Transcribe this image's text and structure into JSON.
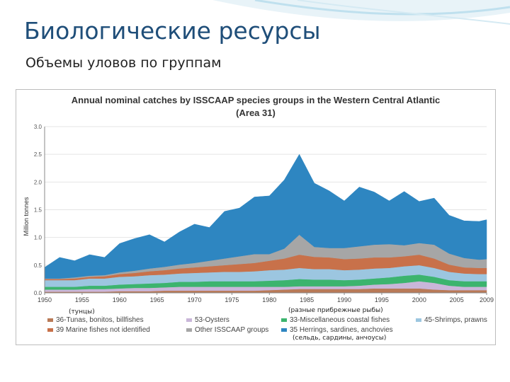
{
  "slide": {
    "title": "Биологические ресурсы",
    "subtitle": "Объемы уловов по группам"
  },
  "annotations": {
    "tunas_ru": "(тунцы)",
    "coastal_ru": "(разные прибрежные рыбы)",
    "herrings_ru": "(сельдь, сардины, анчоусы)"
  },
  "chart_data": {
    "type": "area",
    "stacked": true,
    "title": "Annual nominal catches by ISSCAAP species groups in the Western Central Atlantic",
    "subtitle": "(Area 31)",
    "ylabel": "Million tonnes",
    "xlabel": "",
    "ylim": [
      0,
      3.0
    ],
    "xlim": [
      1950,
      2009
    ],
    "y_ticks": [
      "0.0",
      "0.5",
      "1.0",
      "1.5",
      "2.0",
      "2.5",
      "3.0"
    ],
    "x_ticks": [
      "1950",
      "1955",
      "1960",
      "1965",
      "1970",
      "1975",
      "1980",
      "1985",
      "1990",
      "1995",
      "2000",
      "2005",
      "2009"
    ],
    "x": [
      1950,
      1952,
      1954,
      1956,
      1958,
      1960,
      1962,
      1964,
      1966,
      1968,
      1970,
      1972,
      1974,
      1976,
      1978,
      1980,
      1982,
      1984,
      1986,
      1988,
      1990,
      1992,
      1994,
      1996,
      1998,
      2000,
      2002,
      2004,
      2006,
      2008,
      2009
    ],
    "series": [
      {
        "name": "36-Tunas, bonitos, billfishes",
        "color": "#b97a57",
        "values": [
          0.02,
          0.02,
          0.02,
          0.02,
          0.02,
          0.03,
          0.03,
          0.03,
          0.04,
          0.04,
          0.04,
          0.04,
          0.04,
          0.04,
          0.04,
          0.05,
          0.06,
          0.07,
          0.07,
          0.07,
          0.07,
          0.07,
          0.08,
          0.08,
          0.08,
          0.08,
          0.06,
          0.05,
          0.05,
          0.05,
          0.05
        ]
      },
      {
        "name": "53-Oysters",
        "color": "#c9b6d9",
        "values": [
          0.04,
          0.04,
          0.04,
          0.05,
          0.05,
          0.05,
          0.06,
          0.06,
          0.06,
          0.07,
          0.07,
          0.07,
          0.07,
          0.07,
          0.07,
          0.06,
          0.05,
          0.05,
          0.05,
          0.05,
          0.05,
          0.06,
          0.07,
          0.08,
          0.1,
          0.13,
          0.12,
          0.08,
          0.06,
          0.06,
          0.06
        ]
      },
      {
        "name": "33-Miscellaneous coastal fishes",
        "color": "#3cb46e",
        "values": [
          0.05,
          0.05,
          0.05,
          0.06,
          0.06,
          0.07,
          0.07,
          0.08,
          0.08,
          0.09,
          0.09,
          0.1,
          0.1,
          0.1,
          0.1,
          0.11,
          0.12,
          0.13,
          0.12,
          0.12,
          0.11,
          0.11,
          0.11,
          0.12,
          0.13,
          0.12,
          0.11,
          0.1,
          0.1,
          0.1,
          0.1
        ]
      },
      {
        "name": "45-Shrimps, prawns",
        "color": "#9cc6e0",
        "values": [
          0.12,
          0.12,
          0.12,
          0.13,
          0.13,
          0.14,
          0.14,
          0.15,
          0.15,
          0.15,
          0.16,
          0.16,
          0.17,
          0.17,
          0.18,
          0.19,
          0.19,
          0.2,
          0.19,
          0.19,
          0.18,
          0.18,
          0.18,
          0.17,
          0.17,
          0.17,
          0.16,
          0.15,
          0.14,
          0.13,
          0.13
        ]
      },
      {
        "name": "39 Marine fishes not identified",
        "color": "#c8714a",
        "values": [
          0.02,
          0.02,
          0.03,
          0.03,
          0.04,
          0.05,
          0.06,
          0.07,
          0.08,
          0.09,
          0.1,
          0.11,
          0.12,
          0.14,
          0.15,
          0.17,
          0.2,
          0.24,
          0.22,
          0.21,
          0.2,
          0.2,
          0.2,
          0.19,
          0.18,
          0.19,
          0.17,
          0.13,
          0.11,
          0.11,
          0.11
        ]
      },
      {
        "name": "Other ISSCAAP groups",
        "color": "#a6a6a6",
        "values": [
          0.01,
          0.01,
          0.02,
          0.02,
          0.02,
          0.03,
          0.04,
          0.05,
          0.06,
          0.07,
          0.08,
          0.1,
          0.12,
          0.14,
          0.16,
          0.12,
          0.18,
          0.36,
          0.18,
          0.17,
          0.2,
          0.22,
          0.23,
          0.24,
          0.2,
          0.21,
          0.25,
          0.2,
          0.17,
          0.15,
          0.16
        ]
      },
      {
        "name": "35 Herrings, sardines, anchovies",
        "color": "#2e86c1",
        "values": [
          0.2,
          0.38,
          0.3,
          0.38,
          0.32,
          0.52,
          0.58,
          0.61,
          0.45,
          0.59,
          0.7,
          0.6,
          0.85,
          0.87,
          1.03,
          1.05,
          1.24,
          1.45,
          1.15,
          1.03,
          0.85,
          1.07,
          0.95,
          0.78,
          0.97,
          0.75,
          0.84,
          0.69,
          0.67,
          0.69,
          0.71
        ]
      }
    ],
    "legend": [
      {
        "label": "36-Tunas, bonitos, billfishes",
        "color": "#b97a57"
      },
      {
        "label": "53-Oysters",
        "color": "#c9b6d9"
      },
      {
        "label": "33-Miscellaneous coastal fishes",
        "color": "#3cb46e"
      },
      {
        "label": "45-Shrimps, prawns",
        "color": "#9cc6e0"
      },
      {
        "label": "39 Marine fishes not identified",
        "color": "#c8714a"
      },
      {
        "label": "Other ISSCAAP groups",
        "color": "#a6a6a6"
      },
      {
        "label": "35 Herrings, sardines, anchovies",
        "color": "#2e86c1"
      }
    ],
    "legend_position": "bottom"
  }
}
